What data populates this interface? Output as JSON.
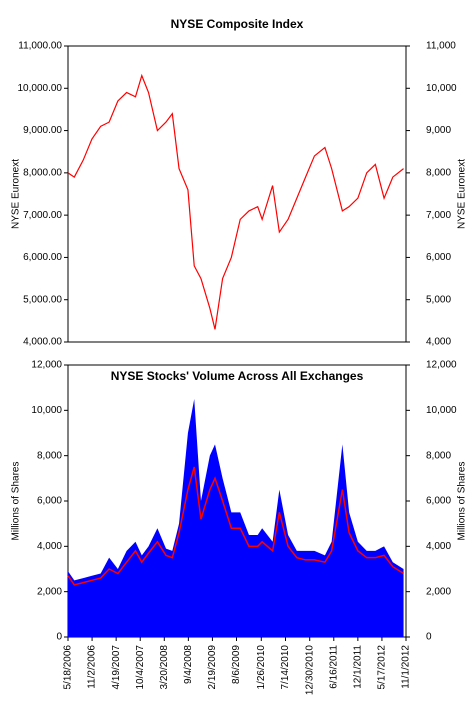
{
  "chart_data": [
    {
      "type": "line",
      "title": "NYSE Composite Index",
      "y_label": "NYSE Euronext",
      "y2_label": "NYSE Euronext",
      "xlim": [
        "5/18/2006",
        "11/1/2012"
      ],
      "x": [
        "5/18/2006",
        "7/1/2006",
        "9/1/2006",
        "11/1/2006",
        "1/1/2007",
        "3/1/2007",
        "5/1/2007",
        "7/1/2007",
        "9/1/2007",
        "10/15/2007",
        "12/1/2007",
        "2/1/2008",
        "4/1/2008",
        "5/15/2008",
        "7/1/2008",
        "9/1/2008",
        "10/15/2008",
        "12/1/2008",
        "2/1/2009",
        "3/9/2009",
        "5/1/2009",
        "7/1/2009",
        "9/1/2009",
        "11/1/2009",
        "1/1/2010",
        "2/1/2010",
        "4/15/2010",
        "6/1/2010",
        "8/1/2010",
        "10/1/2010",
        "12/1/2010",
        "2/1/2011",
        "4/15/2011",
        "6/1/2011",
        "8/15/2011",
        "10/1/2011",
        "12/1/2011",
        "2/1/2012",
        "4/1/2012",
        "6/1/2012",
        "8/1/2012",
        "10/15/2012"
      ],
      "series": [
        {
          "color": "#ff0000",
          "values": [
            8000,
            7900,
            8300,
            8800,
            9100,
            9200,
            9700,
            9900,
            9800,
            10300,
            9900,
            9000,
            9200,
            9400,
            8100,
            7600,
            5800,
            5500,
            4800,
            4300,
            5500,
            6000,
            6900,
            7100,
            7200,
            6900,
            7700,
            6600,
            6900,
            7400,
            7900,
            8400,
            8600,
            8100,
            7100,
            7200,
            7400,
            8000,
            8200,
            7400,
            7900,
            8100
          ]
        }
      ],
      "ylim": [
        4000,
        11000
      ],
      "yticks": [
        {
          "value": 4000,
          "label": "4,000.00"
        },
        {
          "value": 5000,
          "label": "5,000.00"
        },
        {
          "value": 6000,
          "label": "6,000.00"
        },
        {
          "value": 7000,
          "label": "7,000.00"
        },
        {
          "value": 8000,
          "label": "8,000.00"
        },
        {
          "value": 9000,
          "label": "9,000.00"
        },
        {
          "value": 10000,
          "label": "10,000.00"
        },
        {
          "value": 11000,
          "label": "11,000.00"
        }
      ],
      "y2lim": [
        4000,
        11000
      ],
      "y2ticks": [
        {
          "value": 4000,
          "label": "4,000"
        },
        {
          "value": 5000,
          "label": "5,000"
        },
        {
          "value": 6000,
          "label": "6,000"
        },
        {
          "value": 7000,
          "label": "7,000"
        },
        {
          "value": 8000,
          "label": "8,000"
        },
        {
          "value": 9000,
          "label": "9,000"
        },
        {
          "value": 10000,
          "label": "10,000"
        },
        {
          "value": 11000,
          "label": "11,000"
        }
      ]
    },
    {
      "type": "area",
      "title": "NYSE Stocks' Volume Across All Exchanges",
      "y_label": "Millions of Shares",
      "y2_label": "Millions of Shares",
      "xlim": [
        "5/18/2006",
        "11/1/2012"
      ],
      "x": [
        "5/18/2006",
        "7/1/2006",
        "9/1/2006",
        "11/1/2006",
        "1/1/2007",
        "3/1/2007",
        "5/1/2007",
        "7/1/2007",
        "9/1/2007",
        "10/15/2007",
        "12/1/2007",
        "2/1/2008",
        "4/1/2008",
        "5/15/2008",
        "7/1/2008",
        "9/1/2008",
        "10/15/2008",
        "12/1/2008",
        "2/1/2009",
        "3/9/2009",
        "5/1/2009",
        "7/1/2009",
        "9/1/2009",
        "11/1/2009",
        "1/1/2010",
        "2/1/2010",
        "4/15/2010",
        "6/1/2010",
        "8/1/2010",
        "10/1/2010",
        "12/1/2010",
        "2/1/2011",
        "4/15/2011",
        "6/1/2011",
        "8/15/2011",
        "10/1/2011",
        "12/1/2011",
        "2/1/2012",
        "4/1/2012",
        "6/1/2012",
        "8/1/2012",
        "10/15/2012"
      ],
      "series": [
        {
          "color": "#0000ff",
          "values": [
            2900,
            2500,
            2600,
            2700,
            2800,
            3500,
            3000,
            3800,
            4200,
            3600,
            4000,
            4800,
            3900,
            3800,
            5000,
            9000,
            10500,
            6000,
            8000,
            8500,
            7000,
            5500,
            5500,
            4500,
            4500,
            4800,
            4200,
            6500,
            4500,
            3800,
            3800,
            3800,
            3600,
            4200,
            8500,
            5500,
            4200,
            3800,
            3800,
            4000,
            3300,
            3000
          ]
        },
        {
          "color": "#ff0000",
          "values": [
            2700,
            2300,
            2400,
            2500,
            2600,
            3000,
            2800,
            3300,
            3800,
            3300,
            3700,
            4200,
            3600,
            3500,
            4600,
            6500,
            7500,
            5200,
            6500,
            7000,
            6000,
            4800,
            4800,
            4000,
            4000,
            4200,
            3800,
            5500,
            4000,
            3500,
            3400,
            3400,
            3300,
            3800,
            6500,
            4600,
            3800,
            3500,
            3500,
            3600,
            3100,
            2800
          ]
        }
      ],
      "ylim": [
        0,
        12000
      ],
      "yticks": [
        0,
        {
          "value": 2000,
          "label": "2,000"
        },
        {
          "value": 4000,
          "label": "4,000"
        },
        {
          "value": 6000,
          "label": "6,000"
        },
        {
          "value": 8000,
          "label": "8,000"
        },
        {
          "value": 10000,
          "label": "10,000"
        },
        {
          "value": 12000,
          "label": "12,000"
        }
      ],
      "y2lim": [
        0,
        12000
      ],
      "y2ticks": [
        0,
        {
          "value": 2000,
          "label": "2,000"
        },
        {
          "value": 4000,
          "label": "4,000"
        },
        {
          "value": 6000,
          "label": "6,000"
        },
        {
          "value": 8000,
          "label": "8,000"
        },
        {
          "value": 10000,
          "label": "10,000"
        },
        {
          "value": 12000,
          "label": "12,000"
        }
      ],
      "xticks": [
        "5/18/2006",
        "11/2/2006",
        "4/19/2007",
        "10/4/2007",
        "3/20/2008",
        "9/4/2008",
        "2/19/2009",
        "8/6/2009",
        "1/26/2010",
        "7/14/2010",
        "12/30/2010",
        "6/16/2011",
        "12/1/2011",
        "5/17/2012",
        "11/1/2012"
      ]
    }
  ]
}
